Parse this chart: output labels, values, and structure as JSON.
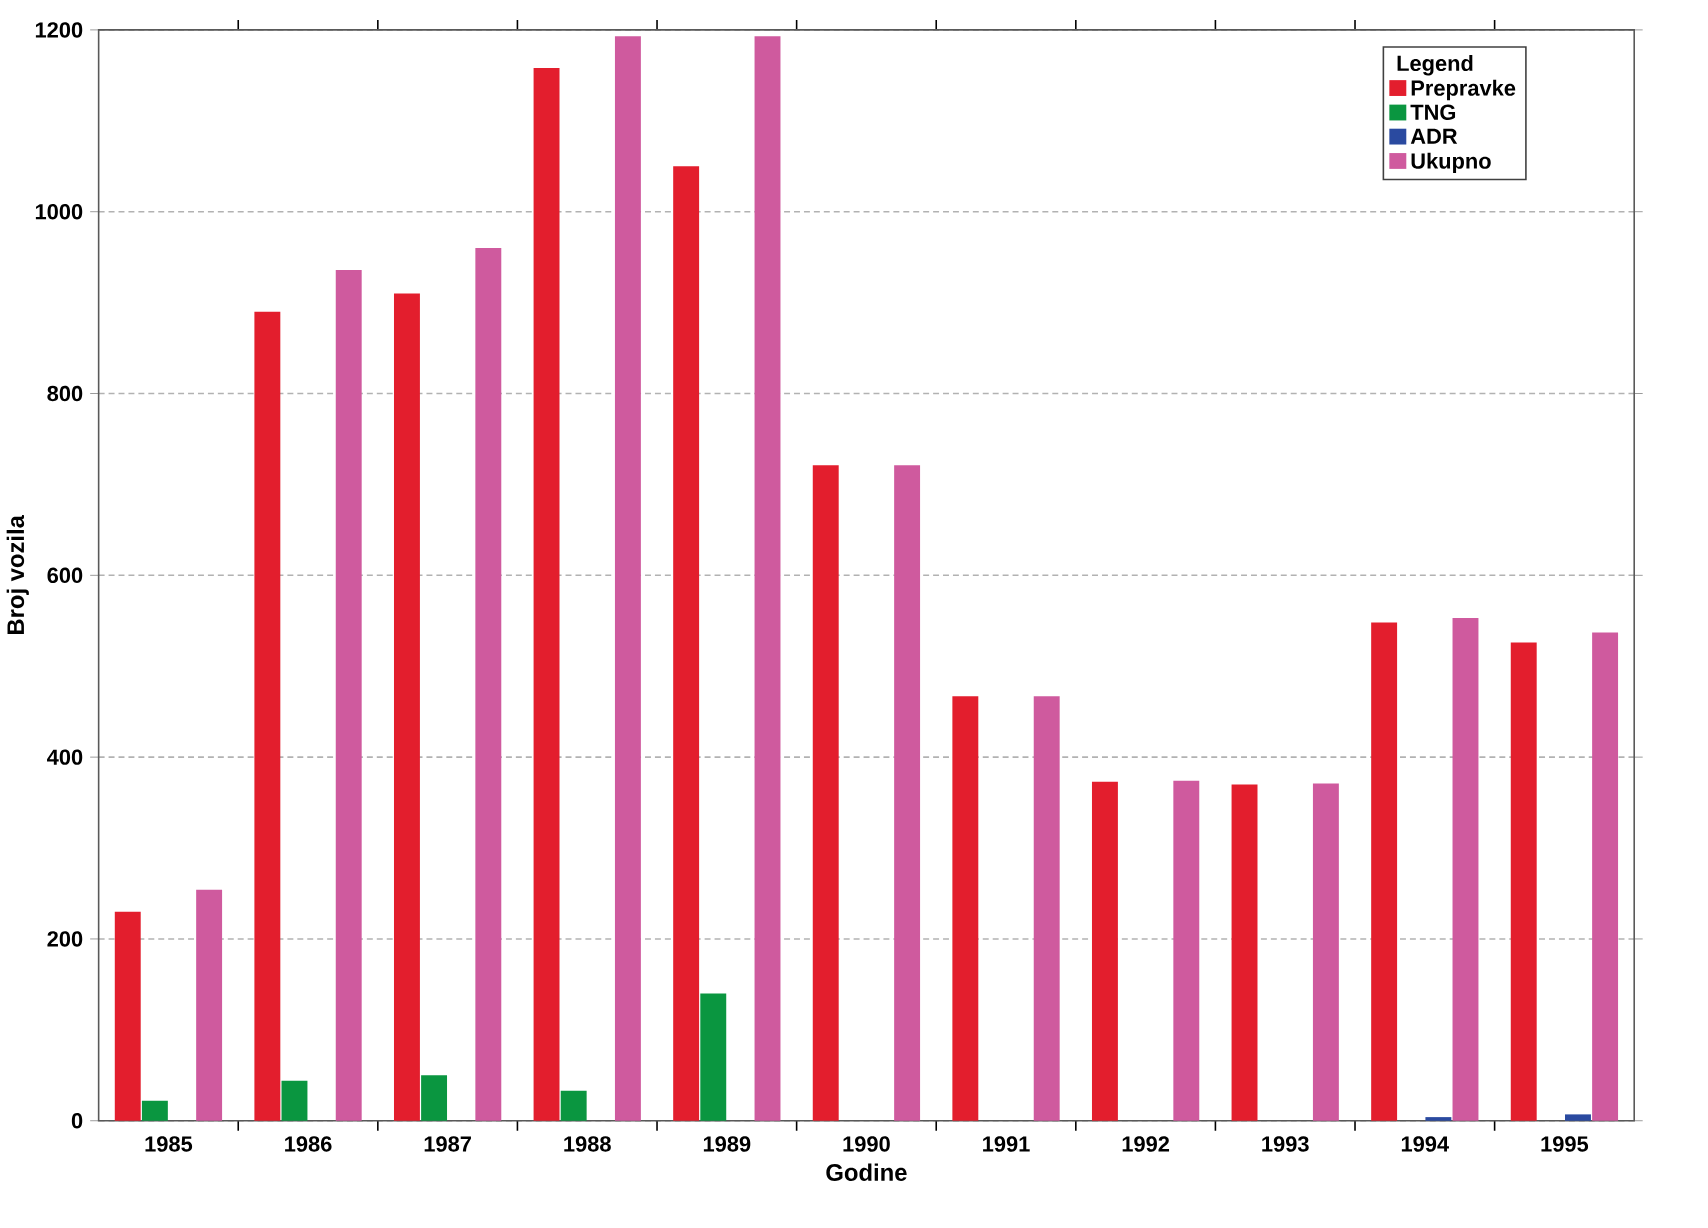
{
  "chart_data": {
    "type": "bar",
    "xlabel": "Godine",
    "ylabel": "Broj vozila",
    "legend_title": "Legend",
    "categories": [
      "1985",
      "1986",
      "1987",
      "1988",
      "1989",
      "1990",
      "1991",
      "1992",
      "1993",
      "1994",
      "1995"
    ],
    "series": [
      {
        "name": "Prepravke",
        "color": "#e31e2d",
        "values": [
          230,
          890,
          910,
          1158,
          1050,
          721,
          467,
          373,
          370,
          548,
          526
        ]
      },
      {
        "name": "TNG",
        "color": "#0a9640",
        "values": [
          22,
          44,
          50,
          33,
          140,
          null,
          null,
          null,
          null,
          null,
          null
        ]
      },
      {
        "name": "ADR",
        "color": "#2a4aa0",
        "values": [
          null,
          null,
          null,
          null,
          null,
          null,
          null,
          null,
          null,
          4,
          7
        ]
      },
      {
        "name": "Ukupno",
        "color": "#cf5a9e",
        "values": [
          254,
          936,
          960,
          1193,
          1193,
          721,
          467,
          374,
          371,
          553,
          537
        ]
      }
    ],
    "ylim": [
      0,
      1200
    ],
    "yticks": [
      0,
      200,
      400,
      600,
      800,
      1000,
      1200
    ],
    "grid": "y",
    "legend": "top right"
  }
}
